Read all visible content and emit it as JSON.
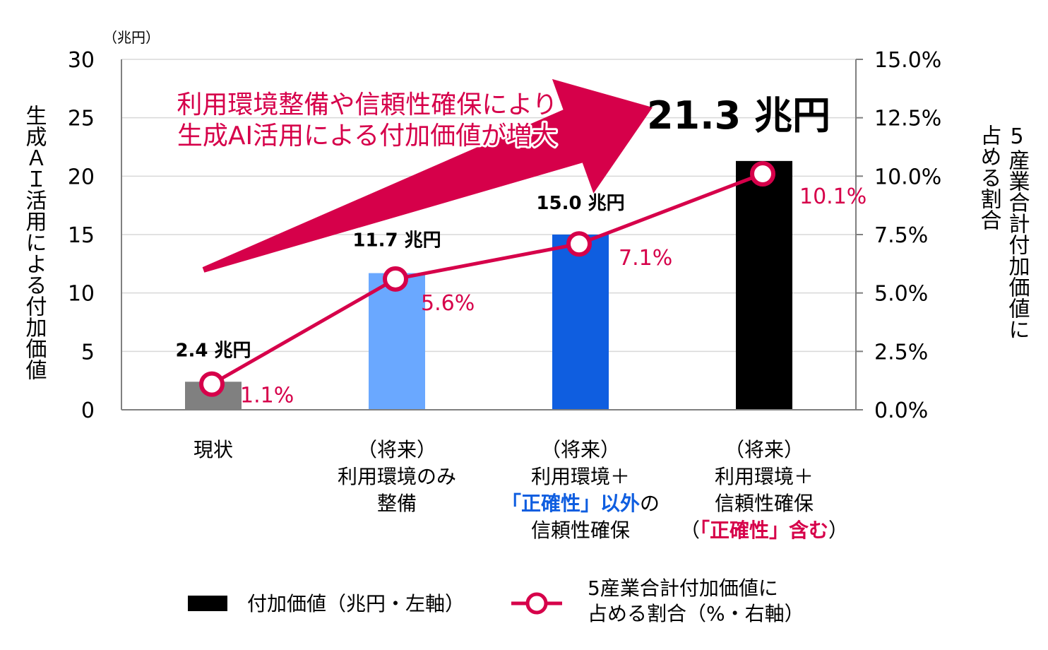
{
  "chart_data": {
    "type": "bar",
    "categories": [
      [
        "現状"
      ],
      [
        "（将来）",
        "利用環境のみ",
        "整備"
      ],
      [
        "（将来）",
        "利用環境＋",
        [
          {
            "t": "「正確性」以外",
            "c": "blue"
          },
          {
            "t": "の",
            "c": "black"
          }
        ],
        "信頼性確保"
      ],
      [
        "（将来）",
        "利用環境＋",
        "信頼性確保",
        [
          {
            "t": "（",
            "c": "black"
          },
          {
            "t": "「正確性」含む",
            "c": "red"
          },
          {
            "t": "）",
            "c": "black"
          }
        ]
      ]
    ],
    "series": [
      {
        "name": "付加価値（兆円・左軸）",
        "type": "bar",
        "axis": "left",
        "values": [
          2.4,
          11.7,
          15.0,
          21.3
        ],
        "labels": [
          "2.4 兆円",
          "11.7 兆円",
          "15.0 兆円",
          "21.3 兆円"
        ],
        "colors": [
          "#808080",
          "#6aa8ff",
          "#0f5ee0",
          "#000000"
        ]
      },
      {
        "name_lines": [
          "5産業合計付加価値に",
          "占める割合（%・右軸）"
        ],
        "type": "line",
        "axis": "right",
        "values": [
          1.1,
          5.6,
          7.1,
          10.1
        ],
        "labels": [
          "1.1%",
          "5.6%",
          "7.1%",
          "10.1%"
        ],
        "color": "#d6004a"
      }
    ],
    "left_axis": {
      "unit": "（兆円）",
      "title": "生成ＡＩ活用による付加価値",
      "ylim": [
        0,
        30
      ],
      "ticks": [
        0,
        5,
        10,
        15,
        20,
        25,
        30
      ],
      "tick_labels": [
        "0",
        "5",
        "10",
        "15",
        "20",
        "25",
        "30"
      ]
    },
    "right_axis": {
      "title_lines": [
        "5産業合計付加価値に",
        "占める割合"
      ],
      "ylim": [
        0,
        15
      ],
      "ticks": [
        0,
        2.5,
        5,
        7.5,
        10,
        12.5,
        15
      ],
      "tick_labels": [
        "0.0%",
        "2.5%",
        "5.0%",
        "7.5%",
        "10.0%",
        "12.5%",
        "15.0%"
      ]
    },
    "annotation": {
      "lines": [
        "利用環境整備や信頼性確保により",
        "生成AI活用による付加価値が増大"
      ]
    },
    "legend": {
      "placement": "bottom",
      "bar_label": "付加価値（兆円・左軸）",
      "line_label_lines": [
        "5産業合計付加価値に",
        "占める割合（%・右軸）"
      ]
    },
    "grid": true,
    "colors": {
      "accent": "#d6004a",
      "blue_text": "#0f5ee0",
      "grid": "#d9d9d9"
    }
  }
}
